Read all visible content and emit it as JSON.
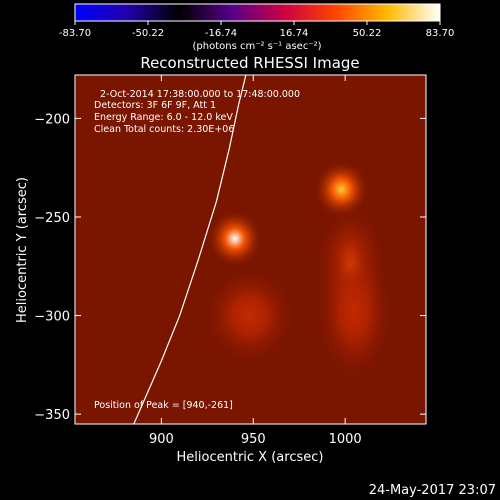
{
  "colorbar": {
    "ticks": [
      "-83.70",
      "-50.22",
      "-16.74",
      "16.74",
      "50.22",
      "83.70"
    ],
    "tick_values": [
      -83.7,
      -50.22,
      -16.74,
      16.74,
      50.22,
      83.7
    ],
    "range": [
      -83.7,
      83.7
    ],
    "unit_label": "(photons cm⁻² s⁻¹ asec⁻²)",
    "colors": [
      "#0000ff",
      "#2200aa",
      "#000000",
      "#550088",
      "#cc0044",
      "#ff4400",
      "#ffbb00",
      "#ffffff"
    ]
  },
  "chart_data": {
    "type": "heatmap",
    "title": "Reconstructed RHESSI Image",
    "xlabel": "Heliocentric X (arcsec)",
    "ylabel": "Heliocentric Y (arcsec)",
    "xlim": [
      853,
      1044
    ],
    "ylim": [
      -355,
      -178
    ],
    "x_ticks": [
      900,
      950,
      1000
    ],
    "y_ticks": [
      -200,
      -250,
      -300,
      -350
    ],
    "x_tick_labels": [
      "900",
      "950",
      "1000"
    ],
    "y_tick_labels": [
      "−200",
      "−250",
      "−300",
      "−350"
    ],
    "background_color": "#7a1500",
    "sources": [
      {
        "x": 940,
        "y": -261,
        "intensity": 83.7,
        "sigma": 7
      },
      {
        "x": 998,
        "y": -236,
        "intensity": 55,
        "sigma": 7
      },
      {
        "x": 1003,
        "y": -275,
        "intensity": 28,
        "sigma": 9
      },
      {
        "x": 1005,
        "y": -298,
        "intensity": 22,
        "sigma": 10
      },
      {
        "x": 948,
        "y": -300,
        "intensity": 12,
        "sigma": 12
      }
    ],
    "limb_curve": [
      [
        885,
        -355
      ],
      [
        900,
        -323
      ],
      [
        910,
        -300
      ],
      [
        920,
        -272
      ],
      [
        930,
        -242
      ],
      [
        937,
        -215
      ],
      [
        942,
        -193
      ],
      [
        946,
        -178
      ]
    ],
    "annotations": {
      "time": "2-Oct-2014 17:38:00.000 to 17:48:00.000",
      "detectors": "Detectors: 3F 6F 9F, Att 1",
      "energy": "Energy Range: 6.0 - 12.0 keV",
      "clean": "Clean    Total counts: 2.30E+06",
      "peak": "Position of Peak = [940,-261]"
    },
    "footer_date": "24-May-2017 23:07"
  }
}
